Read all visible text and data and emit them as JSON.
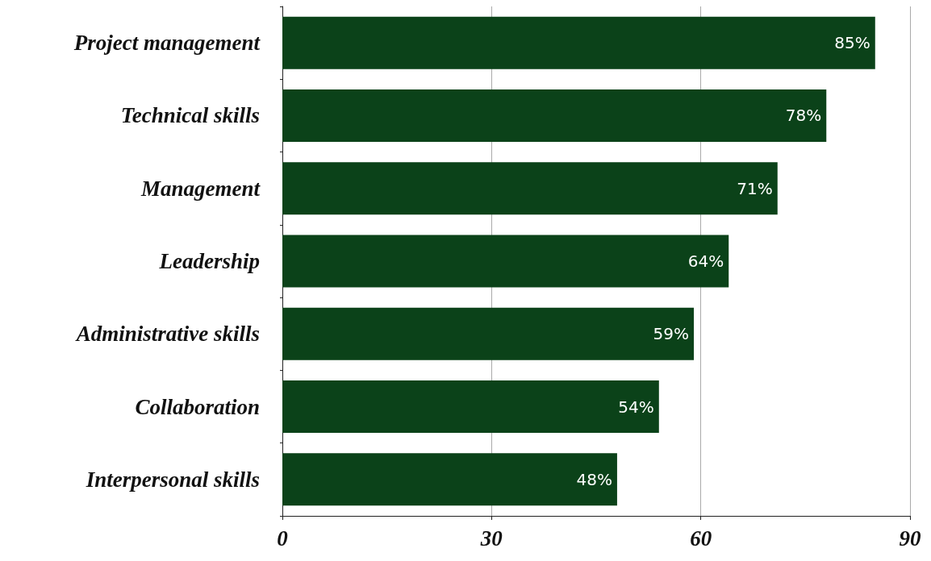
{
  "chart_data": {
    "type": "bar",
    "orientation": "horizontal",
    "categories": [
      "Project management",
      "Technical skills",
      "Management",
      "Leadership",
      "Administrative skills",
      "Collaboration",
      "Interpersonal skills"
    ],
    "values": [
      85,
      78,
      71,
      64,
      59,
      54,
      48
    ],
    "value_labels": [
      "85%",
      "78%",
      "71%",
      "64%",
      "59%",
      "54%",
      "48%"
    ],
    "color": "#0b4219",
    "xlim": [
      0,
      90
    ],
    "xticks": [
      0,
      30,
      60,
      90
    ],
    "grid": "x"
  }
}
